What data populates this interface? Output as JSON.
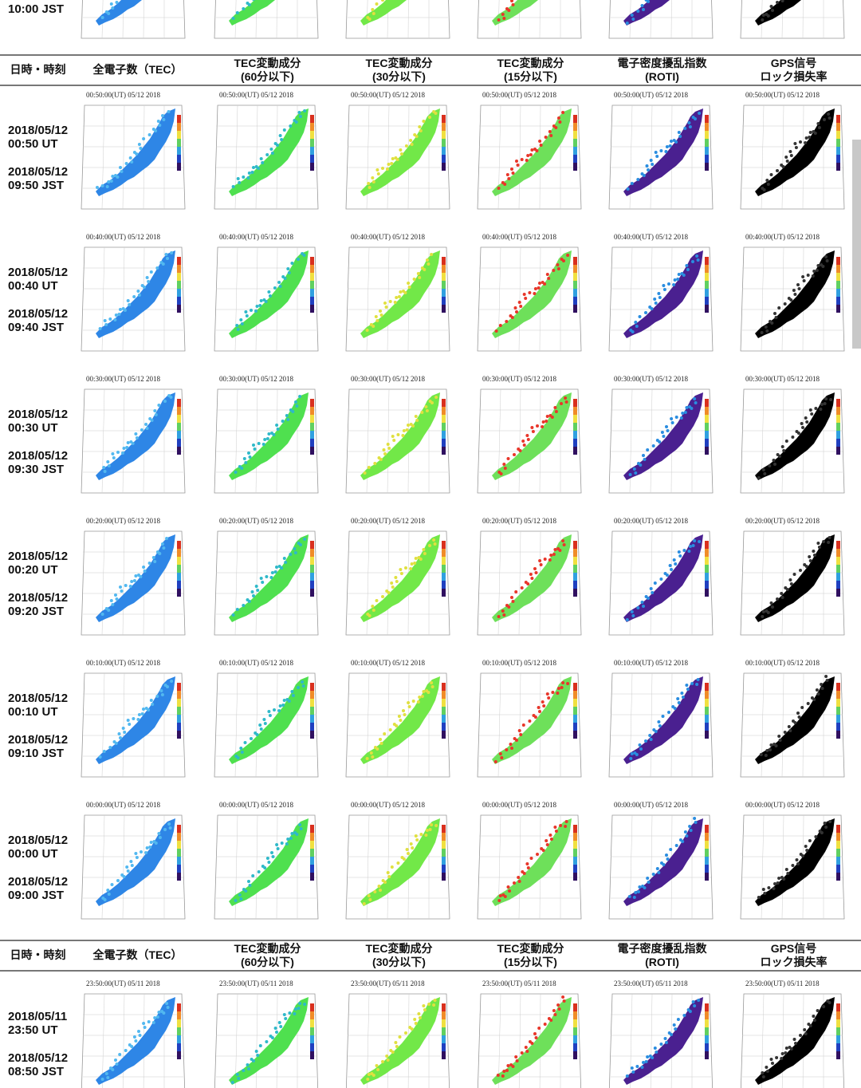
{
  "headers": {
    "col0": "日時・時刻",
    "col1": "全電子数（TEC）",
    "col2a": "TEC変動成分",
    "col2b": "(60分以下)",
    "col3a": "TEC変動成分",
    "col3b": "(30分以下)",
    "col4a": "TEC変動成分",
    "col4b": "(15分以下)",
    "col5a": "電子密度擾乱指数",
    "col5b": "(ROTI)",
    "col6a": "GPS信号",
    "col6b": "ロック損失率"
  },
  "top_partial_time": "10:00 JST",
  "rows": [
    {
      "date_ut": "2018/05/12",
      "ut": "00:50 UT",
      "date_jst": "2018/05/12",
      "jst": "09:50 JST",
      "stamp": "00:50:00(UT)  05/12 2018"
    },
    {
      "date_ut": "2018/05/12",
      "ut": "00:40 UT",
      "date_jst": "2018/05/12",
      "jst": "09:40 JST",
      "stamp": "00:40:00(UT)  05/12 2018"
    },
    {
      "date_ut": "2018/05/12",
      "ut": "00:30 UT",
      "date_jst": "2018/05/12",
      "jst": "09:30 JST",
      "stamp": "00:30:00(UT)  05/12 2018"
    },
    {
      "date_ut": "2018/05/12",
      "ut": "00:20 UT",
      "date_jst": "2018/05/12",
      "jst": "09:20 JST",
      "stamp": "00:20:00(UT)  05/12 2018"
    },
    {
      "date_ut": "2018/05/12",
      "ut": "00:10 UT",
      "date_jst": "2018/05/12",
      "jst": "09:10 JST",
      "stamp": "00:10:00(UT)  05/12 2018"
    },
    {
      "date_ut": "2018/05/12",
      "ut": "00:00 UT",
      "date_jst": "2018/05/12",
      "jst": "09:00 JST",
      "stamp": "00:00:00(UT)  05/12 2018"
    },
    {
      "date_ut": "2018/05/11",
      "ut": "23:50 UT",
      "date_jst": "2018/05/12",
      "jst": "08:50 JST",
      "stamp": "23:50:00(UT)  05/11 2018"
    }
  ],
  "map_columns": [
    {
      "name": "tec-map",
      "color": "#2e86e6",
      "accent": "#52b8f0"
    },
    {
      "name": "tec-60min-map",
      "color": "#4fe04f",
      "accent": "#2fb9c9"
    },
    {
      "name": "tec-30min-map",
      "color": "#72e848",
      "accent": "#e0e040"
    },
    {
      "name": "tec-15min-map",
      "color": "#6ee05a",
      "accent": "#e8362a"
    },
    {
      "name": "roti-map",
      "color": "#4a2090",
      "accent": "#2a8de0"
    },
    {
      "name": "lol-map",
      "color": "#000000",
      "accent": "#333333"
    }
  ]
}
